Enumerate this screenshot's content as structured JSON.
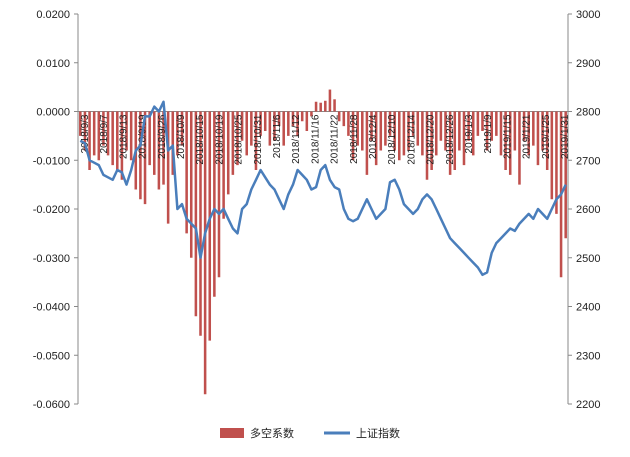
{
  "chart_data": {
    "type": "bar+line",
    "left_axis": {
      "min": -0.06,
      "max": 0.02,
      "ticks": [
        0.02,
        0.01,
        0.0,
        -0.01,
        -0.02,
        -0.03,
        -0.04,
        -0.05,
        -0.06
      ],
      "tick_labels": [
        "0.0200",
        "0.0100",
        "0.0000",
        "-0.0100",
        "-0.0200",
        "-0.0300",
        "-0.0400",
        "-0.0500",
        "-0.0600"
      ]
    },
    "right_axis": {
      "min": 2200,
      "max": 3000,
      "ticks": [
        3000,
        2900,
        2800,
        2700,
        2600,
        2500,
        2400,
        2300,
        2200
      ],
      "tick_labels": [
        "3000",
        "2900",
        "2800",
        "2700",
        "2600",
        "2500",
        "2400",
        "2300",
        "2200"
      ]
    },
    "category_labels": [
      "2018/9/3",
      "2018/9/7",
      "2018/9/13",
      "2018/9/19",
      "2018/9/26",
      "2018/10/9",
      "2018/10/15",
      "2018/10/19",
      "2018/10/25",
      "2018/10/31",
      "2018/11/6",
      "2018/11/12",
      "2018/11/16",
      "2018/11/22",
      "2018/11/28",
      "2018/12/4",
      "2018/12/10",
      "2018/12/14",
      "2018/12/20",
      "2018/12/26",
      "2019/1/3",
      "2019/1/9",
      "2019/1/15",
      "2019/1/21",
      "2019/1/25",
      "2019/1/31"
    ],
    "series": [
      {
        "name": "多空系数",
        "type": "bar",
        "axis": "left",
        "color": "#c0504d",
        "values": [
          -0.005,
          -0.008,
          -0.012,
          -0.009,
          -0.01,
          -0.007,
          -0.009,
          -0.011,
          -0.012,
          -0.014,
          -0.008,
          -0.01,
          -0.016,
          -0.018,
          -0.019,
          -0.011,
          -0.013,
          -0.016,
          -0.015,
          -0.023,
          -0.013,
          -0.009,
          -0.007,
          -0.025,
          -0.03,
          -0.042,
          -0.046,
          -0.058,
          -0.047,
          -0.038,
          -0.034,
          -0.022,
          -0.017,
          -0.013,
          -0.011,
          -0.006,
          -0.009,
          -0.007,
          -0.012,
          -0.005,
          -0.004,
          -0.007,
          -0.006,
          -0.003,
          -0.007,
          -0.005,
          -0.003,
          -0.005,
          -0.002,
          -0.004,
          -0.001,
          0.002,
          0.0018,
          0.0022,
          0.0045,
          0.0025,
          -0.002,
          -0.003,
          -0.005,
          -0.01,
          -0.007,
          -0.008,
          -0.013,
          -0.006,
          -0.011,
          -0.008,
          -0.007,
          -0.005,
          -0.008,
          -0.01,
          -0.009,
          -0.008,
          -0.005,
          -0.007,
          -0.009,
          -0.014,
          -0.012,
          -0.009,
          -0.006,
          -0.008,
          -0.013,
          -0.012,
          -0.008,
          -0.011,
          -0.006,
          -0.009,
          -0.005,
          -0.004,
          -0.008,
          -0.006,
          -0.005,
          -0.009,
          -0.012,
          -0.013,
          -0.008,
          -0.015,
          -0.006,
          -0.009,
          -0.007,
          -0.011,
          -0.008,
          -0.012,
          -0.018,
          -0.021,
          -0.034,
          -0.026
        ]
      },
      {
        "name": "上证指数",
        "type": "line",
        "axis": "right",
        "color": "#4a7ebb",
        "values": [
          2740,
          2735,
          2700,
          2695,
          2690,
          2670,
          2665,
          2660,
          2680,
          2675,
          2650,
          2680,
          2720,
          2730,
          2790,
          2790,
          2810,
          2800,
          2820,
          2720,
          2730,
          2600,
          2610,
          2580,
          2570,
          2560,
          2500,
          2550,
          2580,
          2600,
          2590,
          2600,
          2580,
          2560,
          2550,
          2600,
          2610,
          2640,
          2660,
          2680,
          2665,
          2650,
          2640,
          2620,
          2600,
          2630,
          2650,
          2680,
          2670,
          2660,
          2640,
          2645,
          2680,
          2690,
          2660,
          2645,
          2640,
          2600,
          2580,
          2575,
          2580,
          2600,
          2620,
          2600,
          2580,
          2590,
          2600,
          2655,
          2660,
          2640,
          2610,
          2600,
          2590,
          2600,
          2620,
          2630,
          2620,
          2600,
          2580,
          2560,
          2540,
          2530,
          2520,
          2510,
          2500,
          2490,
          2480,
          2465,
          2470,
          2510,
          2530,
          2540,
          2550,
          2560,
          2555,
          2570,
          2580,
          2590,
          2580,
          2600,
          2590,
          2580,
          2600,
          2620,
          2630,
          2650
        ]
      }
    ],
    "legend": {
      "position": "bottom",
      "items": [
        "多空系数",
        "上证指数"
      ]
    },
    "grid": false,
    "title": ""
  }
}
